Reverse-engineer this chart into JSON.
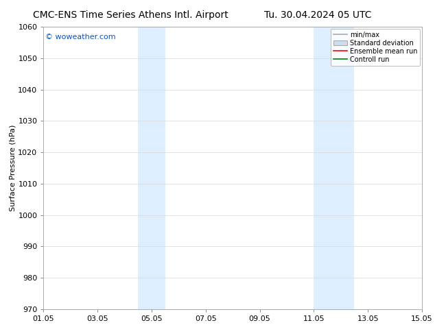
{
  "title_left": "CMC-ENS Time Series Athens Intl. Airport",
  "title_right": "Tu. 30.04.2024 05 UTC",
  "ylabel": "Surface Pressure (hPa)",
  "ylim": [
    970,
    1060
  ],
  "yticks": [
    970,
    980,
    990,
    1000,
    1010,
    1020,
    1030,
    1040,
    1050,
    1060
  ],
  "xtick_labels": [
    "01.05",
    "03.05",
    "05.05",
    "07.05",
    "09.05",
    "11.05",
    "13.05",
    "15.05"
  ],
  "xtick_positions": [
    0,
    2,
    4,
    6,
    8,
    10,
    12,
    14
  ],
  "xlim": [
    0,
    14
  ],
  "background_color": "#ffffff",
  "plot_bg_color": "#ffffff",
  "shaded_bands": [
    {
      "x_start": 3.5,
      "x_end": 4.5,
      "color": "#ddeeff"
    },
    {
      "x_start": 10.0,
      "x_end": 11.5,
      "color": "#ddeeff"
    }
  ],
  "watermark": "© woweather.com",
  "watermark_color": "#0055cc",
  "legend_items": [
    {
      "label": "min/max",
      "color": "#aaaaaa",
      "type": "line"
    },
    {
      "label": "Standard deviation",
      "color": "#ccddee",
      "type": "box"
    },
    {
      "label": "Ensemble mean run",
      "color": "#ff0000",
      "type": "line"
    },
    {
      "label": "Controll run",
      "color": "#008000",
      "type": "line"
    }
  ],
  "grid_color": "#dddddd",
  "spine_color": "#aaaaaa",
  "title_fontsize": 10,
  "axis_label_fontsize": 8,
  "tick_fontsize": 8,
  "legend_fontsize": 7,
  "watermark_fontsize": 8
}
